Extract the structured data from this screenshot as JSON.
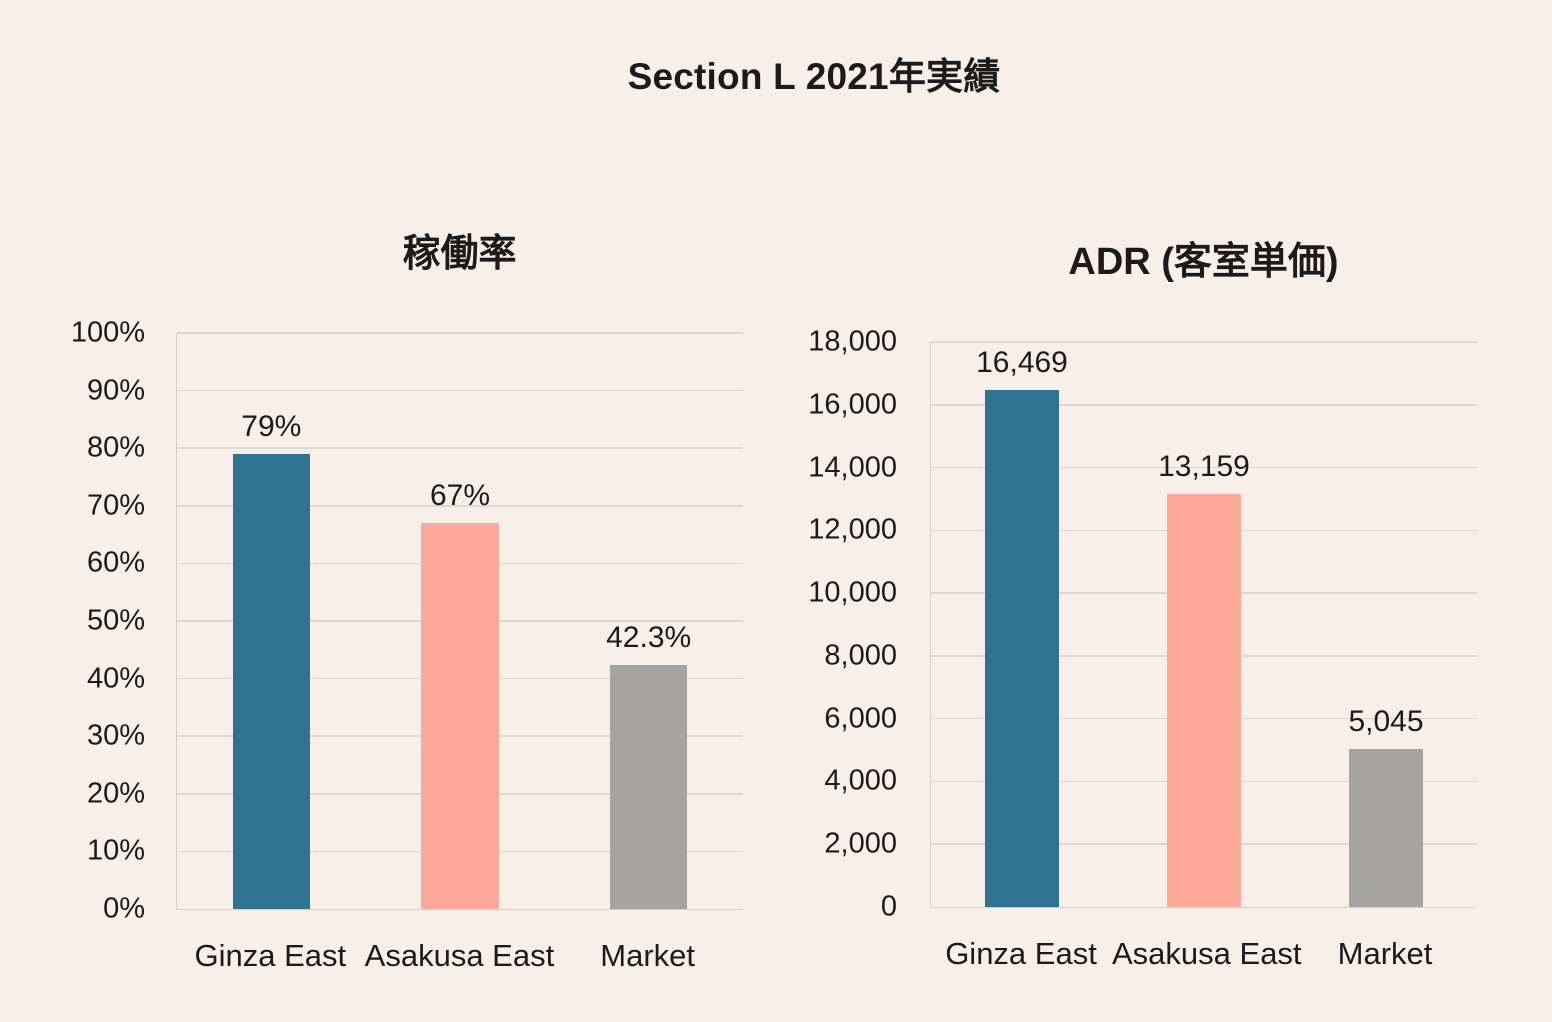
{
  "page": {
    "title": "Section L 2021年実績"
  },
  "colors": {
    "background": "#f8efe8",
    "text": "#1c1b1a",
    "gridline": "#ddd7d2",
    "axis_line": "#d6cfca",
    "bar_teal": "#2f7291",
    "bar_salmon": "#fca89a",
    "bar_gray": "#a5a4a2"
  },
  "chart_data": [
    {
      "type": "bar",
      "title": "稼働率",
      "categories": [
        "Ginza East",
        "Asakusa East",
        "Market"
      ],
      "values": [
        79,
        67,
        42.3
      ],
      "value_labels": [
        "79%",
        "67%",
        "42.3%"
      ],
      "ylim": [
        0,
        100
      ],
      "yticks": [
        "0%",
        "10%",
        "20%",
        "30%",
        "40%",
        "50%",
        "60%",
        "70%",
        "80%",
        "90%",
        "100%"
      ],
      "grid": true,
      "legend": "none",
      "bar_colors": [
        "#2f7291",
        "#fca89a",
        "#a5a4a2"
      ]
    },
    {
      "type": "bar",
      "title": "ADR (客室単価)",
      "categories": [
        "Ginza East",
        "Asakusa East",
        "Market"
      ],
      "values": [
        16469,
        13159,
        5045
      ],
      "value_labels": [
        "16,469",
        "13,159",
        "5,045"
      ],
      "ylim": [
        0,
        18000
      ],
      "yticks": [
        "0",
        "2,000",
        "4,000",
        "6,000",
        "8,000",
        "10,000",
        "12,000",
        "14,000",
        "16,000",
        "18,000"
      ],
      "grid": true,
      "legend": "none",
      "bar_colors": [
        "#2f7291",
        "#fca89a",
        "#a5a4a2"
      ]
    }
  ]
}
